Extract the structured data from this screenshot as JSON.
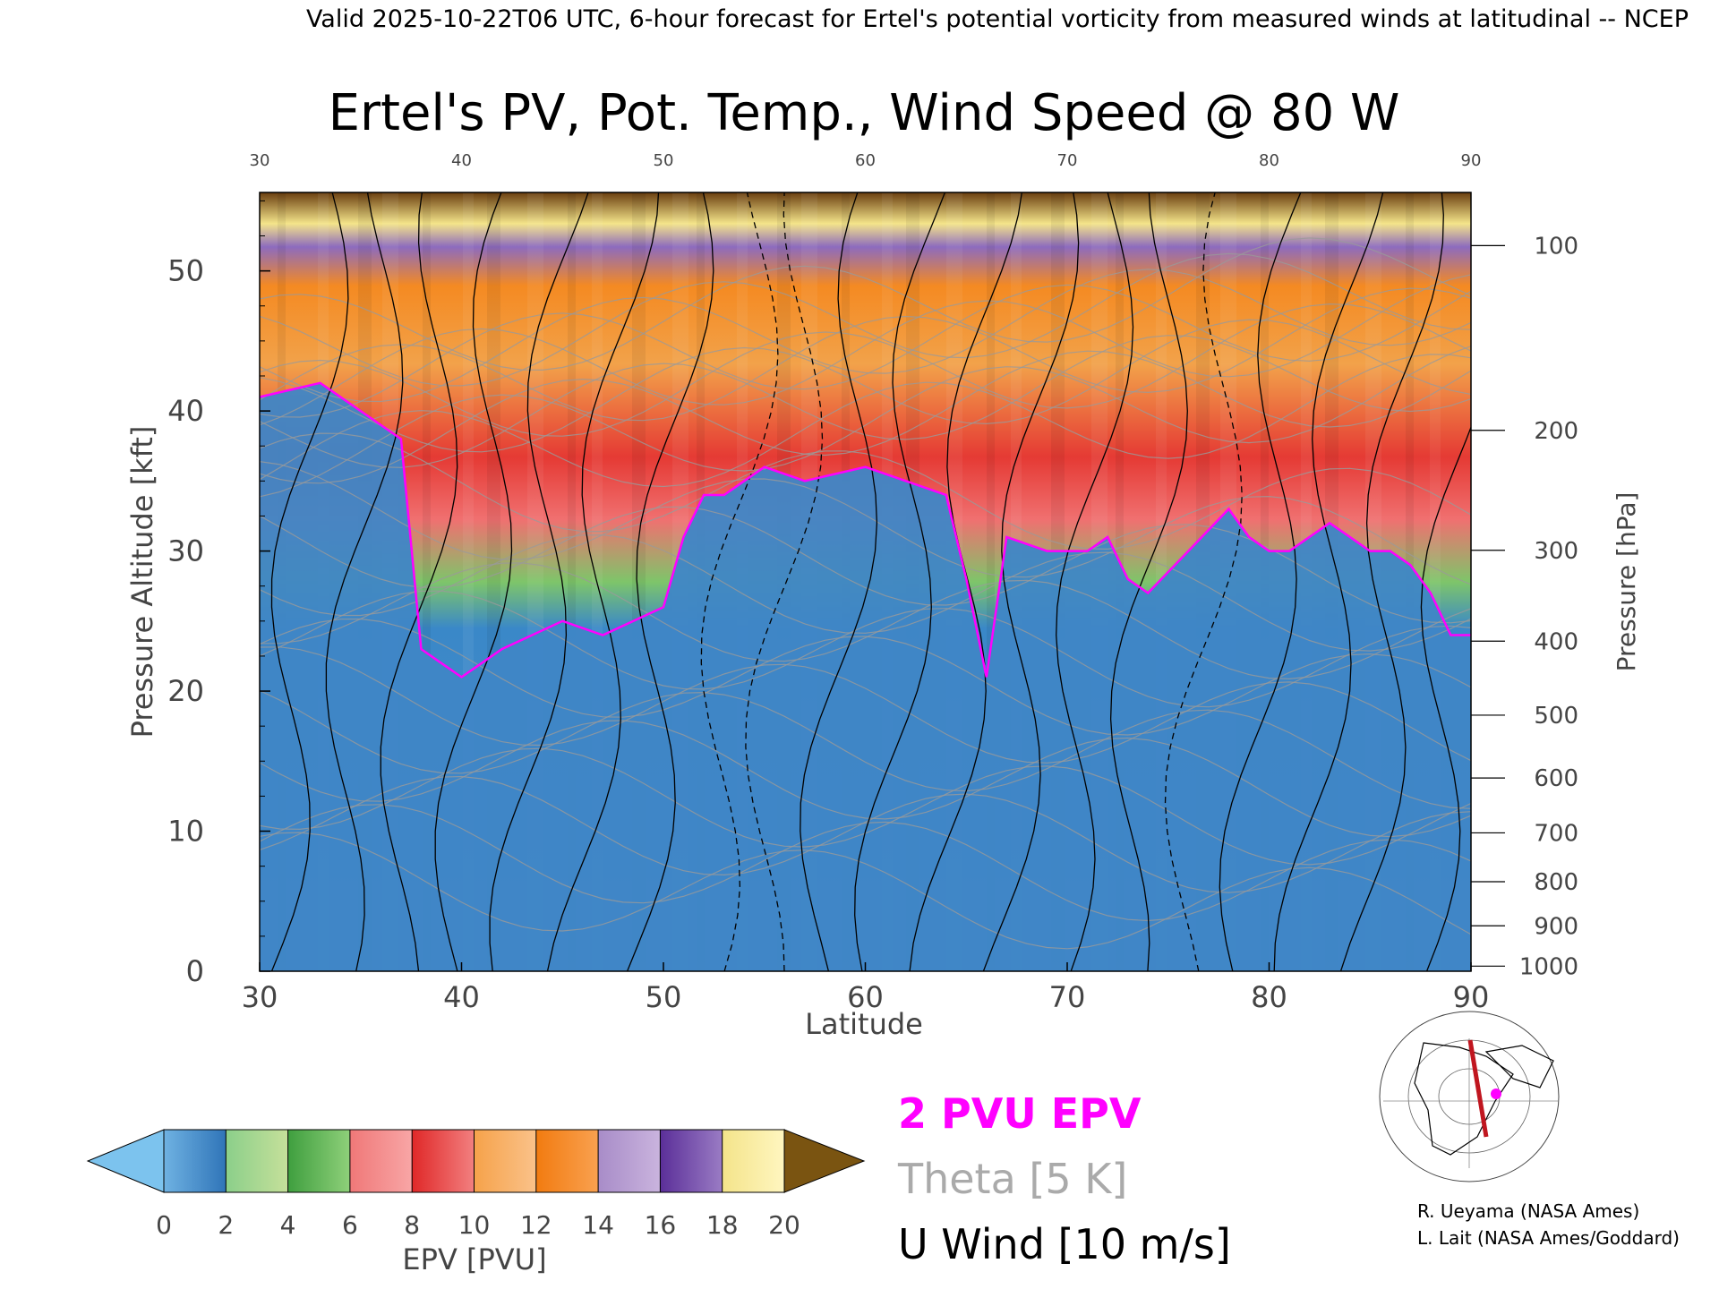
{
  "header": {
    "valid_line": "Valid 2025-10-22T06 UTC, 6-hour forecast for Ertel's potential vorticity from measured winds at latitudinal -- NCEP"
  },
  "chart_data": {
    "type": "heatmap",
    "title": "Ertel's PV, Pot. Temp., Wind Speed @ 80 W",
    "xlabel": "Latitude",
    "ylabel_left": "Pressure Altitude [kft]",
    "ylabel_right": "Pressure [hPa]",
    "xlim": [
      30,
      90
    ],
    "ylim_kft": [
      0,
      55.6
    ],
    "x_ticks": [
      "30",
      "40",
      "50",
      "60",
      "70",
      "80",
      "90"
    ],
    "y_ticks_kft": [
      "0",
      "10",
      "20",
      "30",
      "40",
      "50"
    ],
    "y_ticks_hpa": [
      "100",
      "200",
      "300",
      "400",
      "500",
      "600",
      "700",
      "800",
      "900",
      "1000"
    ],
    "pv_colorbar": {
      "label": "EPV [PVU]",
      "ticks": [
        "0",
        "2",
        "4",
        "6",
        "8",
        "10",
        "12",
        "14",
        "16",
        "18",
        "20"
      ],
      "under_color": "#7cc3ee",
      "over_color": "#7a5411",
      "bands": [
        [
          "#6fb2e2",
          "#2f74b8"
        ],
        [
          "#8bcf8a",
          "#c6e09a"
        ],
        [
          "#3f9f3f",
          "#8fd07a"
        ],
        [
          "#f07878",
          "#f8a6a6"
        ],
        [
          "#e02828",
          "#f28080"
        ],
        [
          "#f6a24a",
          "#fac28a"
        ],
        [
          "#f27b10",
          "#f9a150"
        ],
        [
          "#a88cc8",
          "#cab4de"
        ],
        [
          "#5b2f99",
          "#9a7cc4"
        ],
        [
          "#f4e48a",
          "#fff6c0"
        ]
      ]
    },
    "tropopause_2pvu_kft": [
      [
        30,
        41
      ],
      [
        33,
        42
      ],
      [
        35,
        40
      ],
      [
        37,
        38
      ],
      [
        38,
        23
      ],
      [
        39,
        22
      ],
      [
        40,
        21
      ],
      [
        41,
        22
      ],
      [
        42,
        23
      ],
      [
        45,
        25
      ],
      [
        47,
        24
      ],
      [
        50,
        26
      ],
      [
        51,
        31
      ],
      [
        52,
        34
      ],
      [
        53,
        34
      ],
      [
        55,
        36
      ],
      [
        57,
        35
      ],
      [
        60,
        36
      ],
      [
        62,
        35
      ],
      [
        64,
        34
      ],
      [
        65,
        28
      ],
      [
        66,
        21
      ],
      [
        67,
        31
      ],
      [
        69,
        30
      ],
      [
        71,
        30
      ],
      [
        72,
        31
      ],
      [
        73,
        28
      ],
      [
        74,
        27
      ],
      [
        76,
        30
      ],
      [
        78,
        33
      ],
      [
        79,
        31
      ],
      [
        80,
        30
      ],
      [
        81,
        30
      ],
      [
        82,
        31
      ],
      [
        83,
        32
      ],
      [
        84,
        31
      ],
      [
        85,
        30
      ],
      [
        86,
        30
      ],
      [
        87,
        29
      ],
      [
        88,
        27
      ],
      [
        89,
        24
      ],
      [
        90,
        24
      ]
    ],
    "legend": {
      "epv_label": "2 PVU EPV",
      "theta_label": "Theta [5 K]",
      "wind_label": "U Wind [10 m/s]"
    },
    "credits": [
      "R. Ueyama (NASA Ames)",
      "L. Lait (NASA Ames/Goddard)"
    ]
  }
}
